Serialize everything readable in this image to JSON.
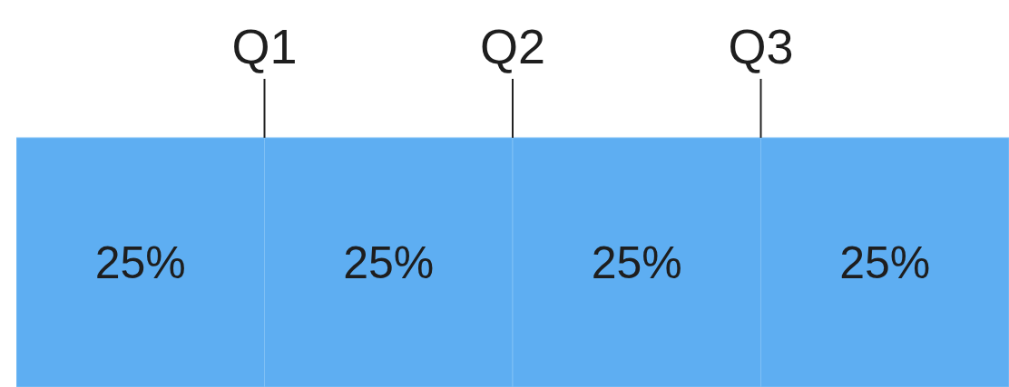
{
  "chart_data": {
    "type": "bar",
    "orientation": "horizontal",
    "stacked": true,
    "categories": [
      null
    ],
    "series": [
      {
        "color": "#5eaef2",
        "values": [
          25
        ],
        "value_labels": [
          "25%"
        ]
      },
      {
        "color": "#5eaef2",
        "values": [
          25
        ],
        "value_labels": [
          "25%"
        ]
      },
      {
        "color": "#5eaef2",
        "values": [
          25
        ],
        "value_labels": [
          "25%"
        ]
      },
      {
        "color": "#5eaef2",
        "values": [
          25
        ],
        "value_labels": [
          "25%"
        ]
      }
    ],
    "annotations": [
      {
        "text": "Q1",
        "x": 25
      },
      {
        "text": "Q2",
        "x": 50
      },
      {
        "text": "Q3",
        "x": 75
      }
    ]
  }
}
